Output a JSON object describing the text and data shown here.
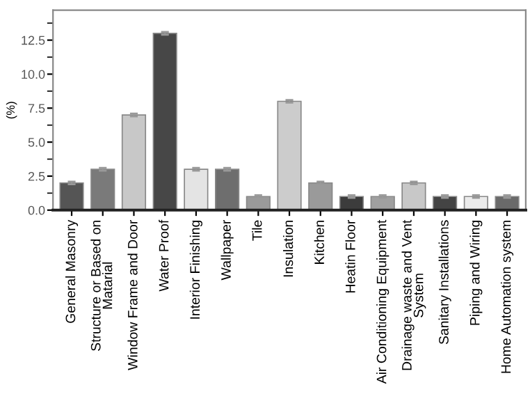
{
  "chart_data": {
    "type": "bar",
    "ylabel": "(%)",
    "categories": [
      "General Masonry",
      "Structure or Based on\nMatarial",
      "Window Frame and Door",
      "Water Proof",
      "Interior Finishing",
      "Wallpaper",
      "Tile",
      "Insulation",
      "Kitchen",
      "Heatin Floor",
      "Air Conditioning Equipment",
      "Drainage waste and Vent\nSystem",
      "Sanitary Installations",
      "Piping and Wiring",
      "Home Automation system"
    ],
    "values": [
      2,
      3,
      7,
      13,
      3,
      3,
      1,
      8,
      2,
      1,
      1,
      2,
      1,
      1,
      1
    ],
    "errors": [
      0.1,
      0.1,
      0.1,
      0.1,
      0.1,
      0.1,
      0.1,
      0.1,
      0.1,
      0.1,
      0.1,
      0.1,
      0.1,
      0.1,
      0.1
    ],
    "colors": [
      "#555555",
      "#7a7a7a",
      "#c8c8c8",
      "#474747",
      "#e4e4e4",
      "#6e6e6e",
      "#9a9a9a",
      "#cccccc",
      "#9a9a9a",
      "#3c3c3c",
      "#a0a0a0",
      "#c8c8c8",
      "#444444",
      "#ebebeb",
      "#6a6a6a"
    ],
    "ylim": [
      0,
      14.7
    ],
    "yticks": [
      {
        "value": 0,
        "label": "0.0"
      },
      {
        "value": 2.5,
        "label": "2.5"
      },
      {
        "value": 5,
        "label": "5.0"
      },
      {
        "value": 7.5,
        "label": "7.5"
      },
      {
        "value": 10,
        "label": "10.0"
      },
      {
        "value": 12.5,
        "label": "12.5"
      }
    ],
    "grid": false
  }
}
